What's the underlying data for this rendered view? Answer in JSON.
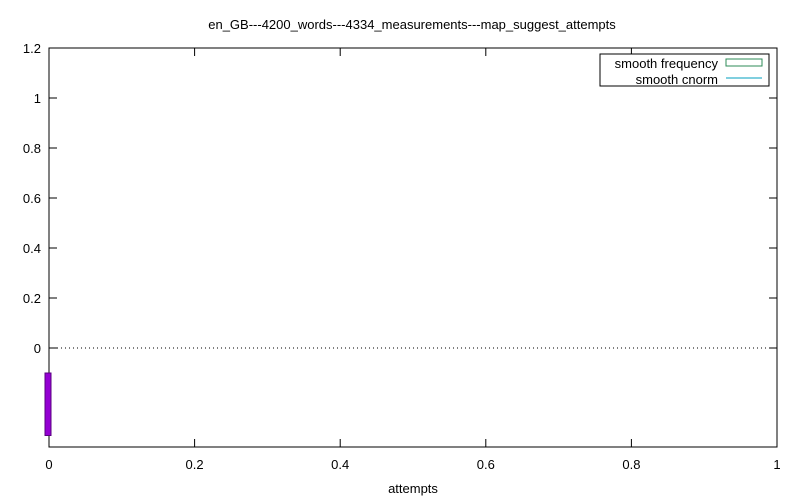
{
  "chart_data": {
    "type": "bar",
    "title": "en_GB---4200_words---4334_measurements---map_suggest_attempts",
    "xlabel": "attempts",
    "ylabel": "",
    "xlim": [
      0,
      1
    ],
    "ylim": [
      -0.4,
      1.2
    ],
    "x_ticks": [
      "0",
      "0.2",
      "0.4",
      "0.6",
      "0.8",
      "1"
    ],
    "y_ticks": [
      "0",
      "0.2",
      "0.4",
      "0.6",
      "0.8",
      "1",
      "1.2"
    ],
    "zero_line": true,
    "legend": {
      "placement": "top-right",
      "entries": [
        {
          "label": "smooth frequency",
          "style": "box",
          "color": "#2e8b57"
        },
        {
          "label": "smooth cnorm",
          "style": "line",
          "color": "#009fbf"
        }
      ]
    },
    "series": [
      {
        "bars": [
          {
            "x": 0,
            "y_bottom": -0.35,
            "y_top": -0.1
          }
        ],
        "color": "#9400d3"
      }
    ]
  }
}
